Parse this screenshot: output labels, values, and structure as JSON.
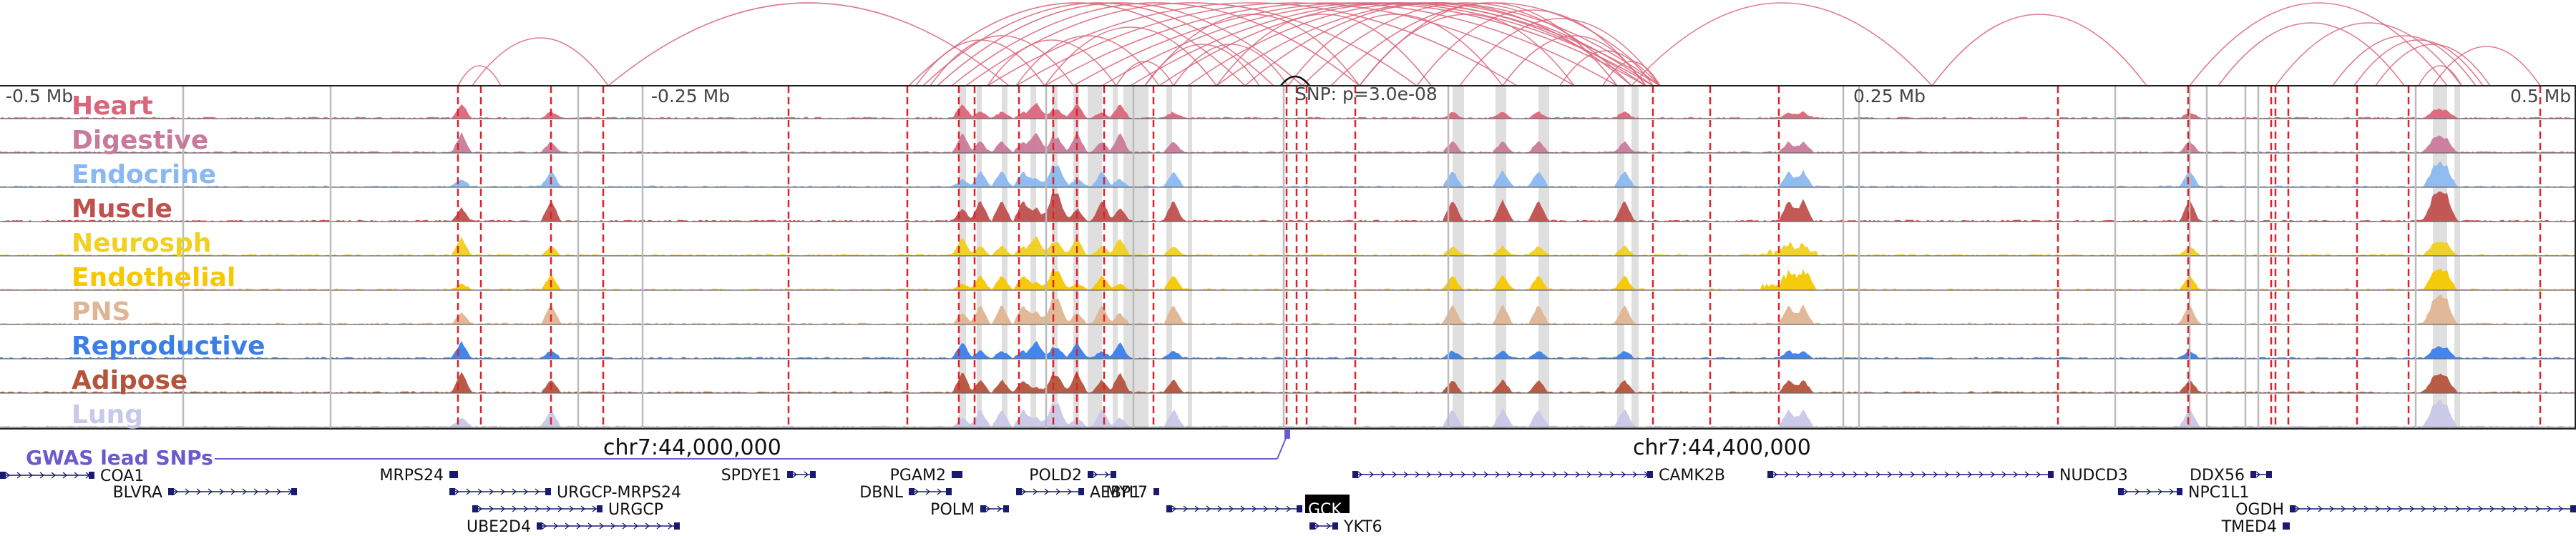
{
  "colors": {
    "loop": "#d9667a",
    "frame": "#222222",
    "dashed": "#e0202a",
    "gray_line": "#bbbbbb",
    "highlight": "#d9d9d9",
    "gwas": "#6a5acd",
    "gene": "#1a1a6e",
    "gene_highlight_bg": "#000000"
  },
  "axis": {
    "ticks": [
      "-0.5 Mb",
      "-0.25 Mb",
      "0.25 Mb",
      "0.5 Mb"
    ],
    "snp_label": "SNP: p=3.0e-08",
    "chrom_labels": [
      "chr7:44,000,000",
      "chr7:44,400,000"
    ]
  },
  "tracks": [
    {
      "name": "Heart",
      "color": "#d9667a"
    },
    {
      "name": "Digestive",
      "color": "#c97a9a"
    },
    {
      "name": "Endocrine",
      "color": "#8ab8f0"
    },
    {
      "name": "Muscle",
      "color": "#c0504d"
    },
    {
      "name": "Neurosph",
      "color": "#f0d020"
    },
    {
      "name": "Endothelial",
      "color": "#f5c800"
    },
    {
      "name": "PNS",
      "color": "#dfb594"
    },
    {
      "name": "Reproductive",
      "color": "#3a7fe8"
    },
    {
      "name": "Adipose",
      "color": "#b5533b"
    },
    {
      "name": "Lung",
      "color": "#c8c8e8"
    }
  ],
  "gwas": {
    "label": "GWAS lead SNPs"
  },
  "genes": [
    {
      "name": "COA1",
      "highlight": false
    },
    {
      "name": "BLVRA",
      "highlight": false
    },
    {
      "name": "MRPS24",
      "highlight": false
    },
    {
      "name": "URGCP-MRPS24",
      "highlight": false
    },
    {
      "name": "URGCP",
      "highlight": false
    },
    {
      "name": "UBE2D4",
      "highlight": false
    },
    {
      "name": "SPDYE1",
      "highlight": false
    },
    {
      "name": "DBNL",
      "highlight": false
    },
    {
      "name": "PGAM2",
      "highlight": false
    },
    {
      "name": "AEBP1",
      "highlight": false
    },
    {
      "name": "POLM",
      "highlight": false
    },
    {
      "name": "POLD2",
      "highlight": false
    },
    {
      "name": "MYL7",
      "highlight": false
    },
    {
      "name": "GCK",
      "highlight": true
    },
    {
      "name": "YKT6",
      "highlight": false
    },
    {
      "name": "CAMK2B",
      "highlight": false
    },
    {
      "name": "NUDCD3",
      "highlight": false
    },
    {
      "name": "NPC1L1",
      "highlight": false
    },
    {
      "name": "DDX56",
      "highlight": false
    },
    {
      "name": "OGDH",
      "highlight": false
    },
    {
      "name": "TMED4",
      "highlight": false
    }
  ]
}
